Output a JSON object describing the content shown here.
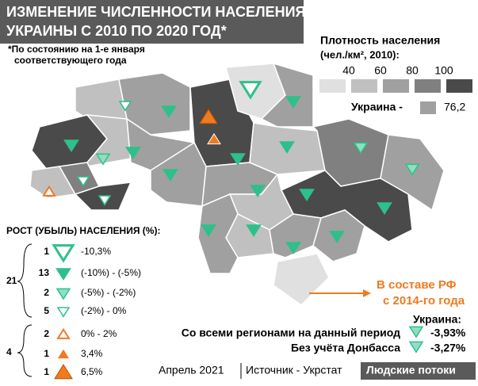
{
  "header": {
    "title": [
      "ИЗМЕНЕНИЕ ЧИСЛЕННОСТИ НАСЕЛЕНИЯ ОБЛАСТЕЙ",
      "УКРАИНЫ С 2010 ПО 2020 ГОД*"
    ],
    "note": [
      "*По состоянию на 1-е января",
      "соответствующего года"
    ]
  },
  "density_legend": {
    "title": "Плотность населения",
    "unit": "(чел./км², 2010):",
    "ticks": [
      "40",
      "60",
      "80",
      "100"
    ],
    "ukraine_label": "Украина -",
    "ukraine_value": "76,2"
  },
  "growth_legend": {
    "title": "РОСТ (УБЫЛЬ) НАСЕЛЕНИЯ (%):",
    "groups": [
      {
        "total": "21",
        "rows": [
          {
            "count": "1",
            "label": "-10,3%"
          },
          {
            "count": "13",
            "label": "(-10%) - (-5%)"
          },
          {
            "count": "2",
            "label": "(-5%) - (-2%)"
          },
          {
            "count": "5",
            "label": "(-2%) - 0%"
          }
        ]
      },
      {
        "total": "4",
        "rows": [
          {
            "count": "2",
            "label": "0% - 2%"
          },
          {
            "count": "1",
            "label": "3,4%"
          },
          {
            "count": "1",
            "label": "6,5%"
          }
        ]
      }
    ]
  },
  "crimea_note": [
    "В составе РФ",
    "с 2014-го года"
  ],
  "summary": {
    "title": "Украина:",
    "rows": [
      {
        "label": "Со всеми регионами на данный период",
        "value": "-3,93%"
      },
      {
        "label": "Без учёта Донбасса",
        "value": "-3,27%"
      }
    ]
  },
  "footer": {
    "date": "Апрель 2021",
    "source": "Источник - Укрстат",
    "brand": "Людские потоки"
  }
}
